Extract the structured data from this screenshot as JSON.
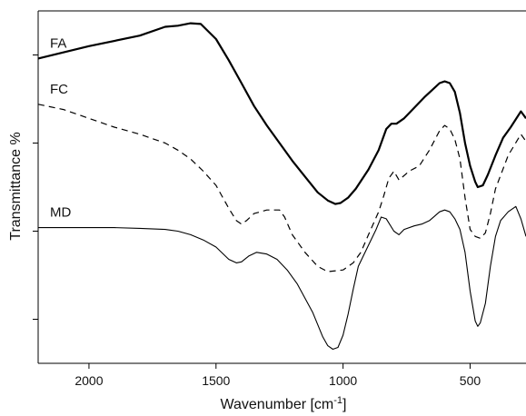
{
  "chart_data": {
    "type": "line",
    "title": "",
    "xlabel": "Wavenumber [cm",
    "xlabel_sup": "-1",
    "xlabel_close": "]",
    "ylabel": "Transmittance %",
    "xlim": [
      2200,
      280
    ],
    "x_reversed": true,
    "ylim": [
      0,
      100
    ],
    "y_tick_labels_shown": false,
    "grid": false,
    "x_ticks": [
      {
        "value": 2000,
        "label": "2000"
      },
      {
        "value": 1500,
        "label": "1500"
      },
      {
        "value": 1000,
        "label": "1000"
      },
      {
        "value": 500,
        "label": "500"
      }
    ],
    "y_ticks": [
      12.5,
      37.5,
      62.5,
      87.5
    ],
    "series": [
      {
        "name": "FA",
        "style": "solid-thick",
        "x": [
          2200,
          2000,
          1800,
          1700,
          1650,
          1600,
          1560,
          1500,
          1450,
          1400,
          1350,
          1300,
          1250,
          1200,
          1150,
          1100,
          1060,
          1030,
          1010,
          980,
          950,
          900,
          860,
          830,
          810,
          790,
          760,
          720,
          680,
          650,
          620,
          600,
          580,
          560,
          540,
          520,
          500,
          480,
          470,
          450,
          430,
          400,
          370,
          340,
          300,
          280
        ],
        "values": [
          86.5,
          90.0,
          93.0,
          95.5,
          95.8,
          96.5,
          96.3,
          92.0,
          86.0,
          79.5,
          73.0,
          67.5,
          62.5,
          57.5,
          53.0,
          48.5,
          46.2,
          45.2,
          45.5,
          47.0,
          49.5,
          55.0,
          60.5,
          66.5,
          68.0,
          68.0,
          69.5,
          72.5,
          75.5,
          77.5,
          79.5,
          80.0,
          79.5,
          77.0,
          71.0,
          62.5,
          56.0,
          51.5,
          50.0,
          50.5,
          53.5,
          59.0,
          64.0,
          67.0,
          71.5,
          69.5
        ]
      },
      {
        "name": "FC",
        "style": "dashed",
        "x": [
          2200,
          2100,
          2000,
          1900,
          1800,
          1700,
          1650,
          1600,
          1550,
          1500,
          1450,
          1420,
          1400,
          1380,
          1350,
          1300,
          1250,
          1230,
          1200,
          1150,
          1100,
          1060,
          1000,
          960,
          930,
          900,
          860,
          840,
          820,
          800,
          780,
          740,
          700,
          660,
          620,
          600,
          580,
          560,
          540,
          520,
          500,
          480,
          460,
          440,
          420,
          400,
          350,
          300,
          280
        ],
        "values": [
          73.5,
          72.0,
          69.5,
          67.0,
          65.0,
          62.5,
          60.5,
          58.0,
          54.5,
          50.5,
          44.0,
          40.5,
          39.5,
          40.5,
          42.5,
          43.5,
          43.5,
          41.5,
          36.5,
          31.5,
          27.5,
          26.0,
          26.5,
          28.5,
          31.5,
          36.5,
          43.0,
          47.5,
          52.5,
          54.5,
          52.0,
          54.5,
          56.0,
          60.5,
          66.0,
          67.5,
          66.5,
          63.5,
          58.0,
          47.0,
          38.0,
          36.0,
          35.5,
          37.0,
          42.5,
          49.5,
          59.0,
          65.0,
          63.0
        ]
      },
      {
        "name": "MD",
        "style": "solid-thin",
        "x": [
          2200,
          2100,
          2000,
          1900,
          1800,
          1700,
          1650,
          1600,
          1550,
          1500,
          1450,
          1420,
          1400,
          1370,
          1340,
          1300,
          1260,
          1220,
          1180,
          1150,
          1120,
          1100,
          1080,
          1060,
          1040,
          1020,
          1000,
          980,
          960,
          940,
          900,
          870,
          850,
          830,
          800,
          780,
          760,
          720,
          690,
          660,
          620,
          600,
          580,
          560,
          540,
          520,
          500,
          480,
          470,
          460,
          440,
          420,
          400,
          380,
          350,
          320,
          300,
          280
        ],
        "values": [
          38.5,
          38.5,
          38.5,
          38.5,
          38.3,
          38.0,
          37.5,
          36.5,
          35.0,
          33.0,
          29.5,
          28.5,
          28.8,
          30.5,
          31.5,
          31.0,
          29.5,
          26.5,
          22.5,
          18.5,
          14.5,
          11.0,
          7.5,
          5.0,
          4.0,
          4.5,
          8.0,
          14.0,
          21.0,
          27.5,
          33.5,
          38.0,
          41.5,
          41.0,
          37.5,
          36.5,
          38.0,
          39.0,
          39.5,
          40.5,
          43.0,
          43.5,
          43.0,
          41.0,
          38.0,
          31.5,
          20.5,
          12.0,
          10.5,
          11.5,
          17.0,
          27.5,
          36.0,
          40.5,
          43.0,
          44.5,
          41.0,
          36.0
        ]
      }
    ]
  }
}
